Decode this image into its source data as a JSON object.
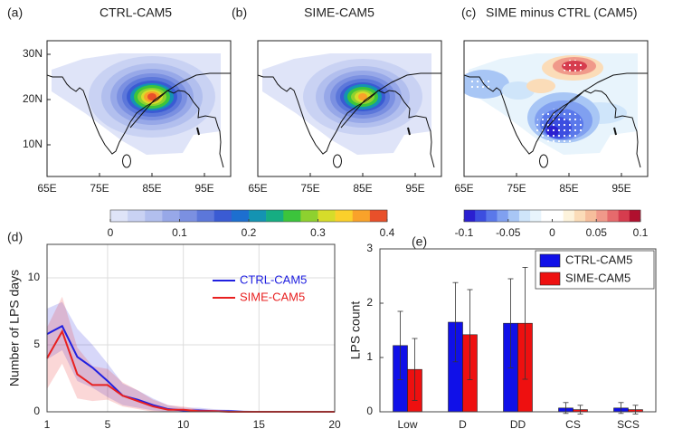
{
  "chart_data": [
    {
      "type": "map",
      "panel": "(a)",
      "title": "CTRL-CAM5",
      "xlim": [
        65,
        100
      ],
      "ylim": [
        3,
        33
      ],
      "xticks": [
        {
          "value": 65,
          "label": "65E"
        },
        {
          "value": 75,
          "label": "75E"
        },
        {
          "value": 85,
          "label": "85E"
        },
        {
          "value": 95,
          "label": "95E"
        }
      ],
      "yticks": [
        {
          "value": 10,
          "label": "10N"
        },
        {
          "value": 20,
          "label": "20N"
        },
        {
          "value": 30,
          "label": "30N"
        }
      ]
    },
    {
      "type": "map",
      "panel": "(b)",
      "title": "SIME-CAM5",
      "xlim": [
        65,
        100
      ],
      "ylim": [
        3,
        33
      ],
      "xticks": [
        {
          "value": 65,
          "label": "65E"
        },
        {
          "value": 75,
          "label": "75E"
        },
        {
          "value": 85,
          "label": "85E"
        },
        {
          "value": 95,
          "label": "95E"
        }
      ],
      "yticks": []
    },
    {
      "type": "map",
      "panel": "(c)",
      "title": "SIME minus CTRL (CAM5)",
      "xlim": [
        65,
        100
      ],
      "ylim": [
        3,
        33
      ],
      "xticks": [
        {
          "value": 65,
          "label": "65E"
        },
        {
          "value": 75,
          "label": "75E"
        },
        {
          "value": 85,
          "label": "85E"
        },
        {
          "value": 95,
          "label": "95E"
        }
      ],
      "yticks": []
    },
    {
      "type": "colorbar",
      "lim": [
        0,
        0.4
      ],
      "ticks": [
        0,
        0.1,
        0.2,
        0.3,
        0.4
      ],
      "colors": [
        "#dfe4f8",
        "#c9d2f3",
        "#b2bfee",
        "#97a8e8",
        "#7b90e1",
        "#5c77da",
        "#3a5bd3",
        "#1d6fd0",
        "#1493b2",
        "#16ad82",
        "#3cc43c",
        "#8ed12f",
        "#d6dc2a",
        "#fbd02b",
        "#f9a22a",
        "#e8502a"
      ]
    },
    {
      "type": "colorbar",
      "lim": [
        -0.1,
        0.1
      ],
      "ticks": [
        -0.1,
        -0.05,
        0,
        0.05,
        0.1
      ],
      "colors": [
        "#2a1fd0",
        "#3c4ee0",
        "#5a78ea",
        "#80a0f0",
        "#a8c6f5",
        "#cfe5fa",
        "#e8f4fc",
        "#ffffff",
        "#ffffff",
        "#fdf3dc",
        "#fbdcb8",
        "#f6be9c",
        "#f0998a",
        "#e66a6c",
        "#d63c4e",
        "#b0102e"
      ]
    },
    {
      "type": "line",
      "panel": "(d)",
      "ylabel": "Number of LPS days",
      "x": [
        1,
        2,
        3,
        4,
        5,
        6,
        7,
        8,
        9,
        10,
        11,
        12,
        13,
        14,
        15,
        16,
        17,
        18,
        19,
        20
      ],
      "xlim": [
        1,
        20
      ],
      "ylim": [
        0,
        12.5
      ],
      "xticks": [
        1,
        5,
        10,
        15,
        20
      ],
      "yticks": [
        0,
        5,
        10
      ],
      "grid": true,
      "legend": "upper right",
      "series": [
        {
          "name": "CTRL-CAM5",
          "color": "#2020e0",
          "values": [
            5.8,
            6.4,
            4.1,
            3.3,
            2.3,
            1.2,
            0.9,
            0.5,
            0.2,
            0.1,
            0.1,
            0.05,
            0.05,
            0,
            0,
            0,
            0,
            0,
            0,
            0
          ],
          "upper": [
            7.7,
            8.2,
            6.2,
            5.0,
            3.6,
            2.1,
            1.6,
            1.0,
            0.5,
            0.3,
            0.3,
            0.2,
            0.15,
            0.1,
            0.05,
            0.05,
            0.05,
            0.05,
            0.05,
            0.05
          ],
          "lower": [
            3.9,
            4.6,
            2.3,
            1.8,
            1.1,
            0.5,
            0.3,
            0.1,
            0,
            0,
            0,
            0,
            0,
            0,
            0,
            0,
            0,
            0,
            0,
            0
          ]
        },
        {
          "name": "SIME-CAM5",
          "color": "#e82020",
          "values": [
            4.0,
            6.0,
            2.8,
            2.0,
            2.0,
            1.2,
            0.8,
            0.4,
            0.15,
            0.15,
            0.05,
            0.05,
            0,
            0,
            0,
            0,
            0,
            0,
            0,
            0
          ],
          "upper": [
            6.3,
            8.6,
            4.8,
            3.4,
            3.2,
            2.2,
            1.6,
            0.9,
            0.5,
            0.4,
            0.2,
            0.15,
            0.1,
            0.05,
            0.05,
            0.05,
            0.05,
            0.05,
            0.05,
            0.05
          ],
          "lower": [
            1.7,
            3.6,
            1.0,
            0.8,
            0.9,
            0.4,
            0.2,
            0,
            0,
            0,
            0,
            0,
            0,
            0,
            0,
            0,
            0,
            0,
            0,
            0
          ]
        }
      ]
    },
    {
      "type": "bar",
      "panel": "(e)",
      "ylabel": "LPS count",
      "categories": [
        "Low",
        "D",
        "DD",
        "CS",
        "SCS"
      ],
      "ylim": [
        0,
        3
      ],
      "yticks": [
        0,
        1,
        2,
        3
      ],
      "legend": "upper right",
      "series": [
        {
          "name": "CTRL-CAM5",
          "color": "#1010e8",
          "values": [
            1.22,
            1.65,
            1.63,
            0.07,
            0.07
          ],
          "errors": [
            0.63,
            0.73,
            0.82,
            0.1,
            0.1
          ]
        },
        {
          "name": "SIME-CAM5",
          "color": "#ee1010",
          "values": [
            0.78,
            1.42,
            1.63,
            0.04,
            0.04
          ],
          "errors": [
            0.57,
            0.83,
            1.03,
            0.08,
            0.08
          ]
        }
      ]
    }
  ]
}
